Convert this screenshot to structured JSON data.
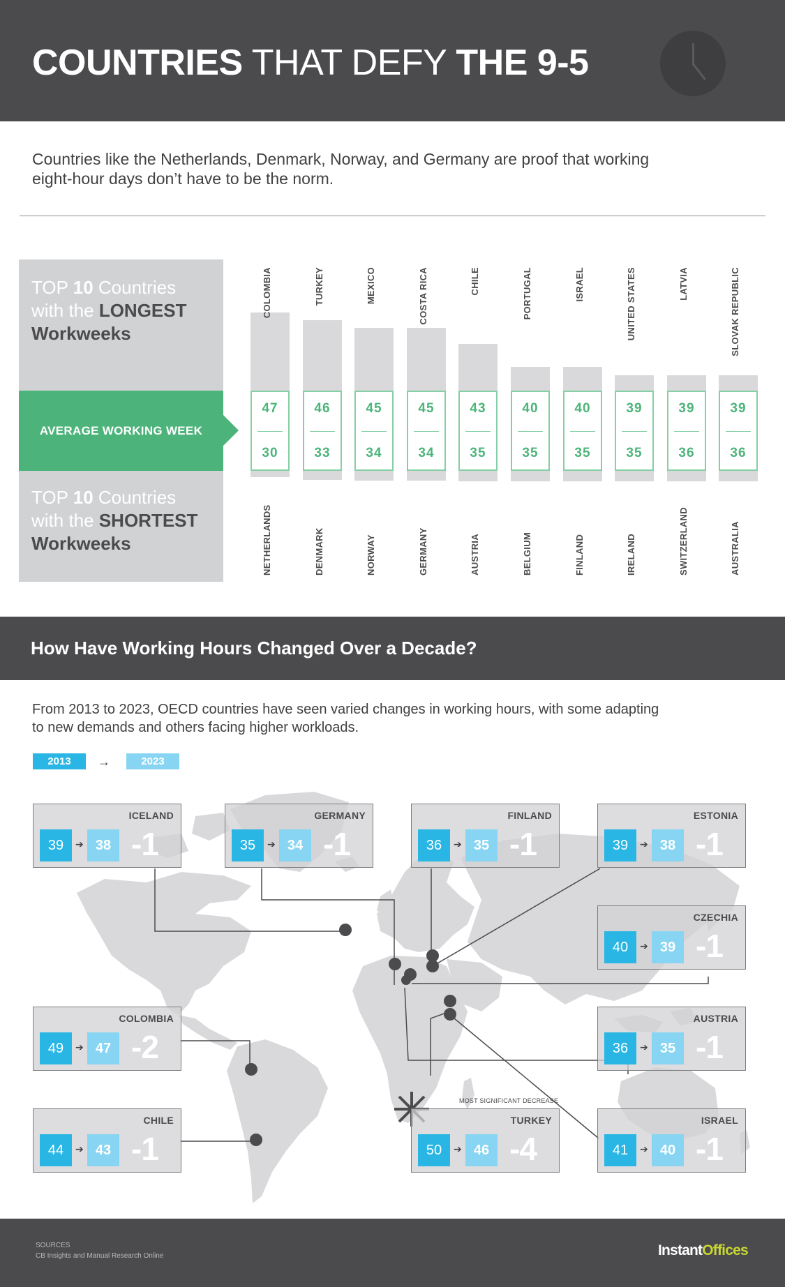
{
  "header": {
    "title_part1": "COUNTRIES",
    "title_part2": " THAT DEFY ",
    "title_part3": "THE 9-5",
    "icon": "clock-icon"
  },
  "intro": "Countries like the Netherlands, Denmark, Norway, and Germany are proof that working eight-hour days don’t have to be the norm.",
  "panels": {
    "longest": {
      "top": "TOP ",
      "num": "10",
      "rest1": " Countries",
      "line2a": "with the ",
      "line2b": "LONGEST",
      "line3": "Workweeks"
    },
    "average_label": "AVERAGE WORKING WEEK",
    "shortest": {
      "top": "TOP ",
      "num": "10",
      "rest1": " Countries",
      "line2a": "with the ",
      "line2b": "SHORTEST",
      "line3": "Workweeks"
    }
  },
  "chart_data": {
    "type": "bar",
    "longest": [
      {
        "country": "COLOMBIA",
        "hours": 47
      },
      {
        "country": "TURKEY",
        "hours": 46
      },
      {
        "country": "MEXICO",
        "hours": 45
      },
      {
        "country": "COSTA RICA",
        "hours": 45
      },
      {
        "country": "CHILE",
        "hours": 43
      },
      {
        "country": "PORTUGAL",
        "hours": 40
      },
      {
        "country": "ISRAEL",
        "hours": 40
      },
      {
        "country": "UNITED STATES",
        "hours": 39
      },
      {
        "country": "LATVIA",
        "hours": 39
      },
      {
        "country": "SLOVAK REPUBLIC",
        "hours": 39
      }
    ],
    "shortest": [
      {
        "country": "NETHERLANDS",
        "hours": 30
      },
      {
        "country": "DENMARK",
        "hours": 33
      },
      {
        "country": "NORWAY",
        "hours": 34
      },
      {
        "country": "GERMANY",
        "hours": 34
      },
      {
        "country": "AUSTRIA",
        "hours": 35
      },
      {
        "country": "BELGIUM",
        "hours": 35
      },
      {
        "country": "FINLAND",
        "hours": 35
      },
      {
        "country": "IRELAND",
        "hours": 35
      },
      {
        "country": "SWITZERLAND",
        "hours": 36
      },
      {
        "country": "AUSTRALIA",
        "hours": 36
      }
    ]
  },
  "section2": {
    "title": "How Have Working Hours Changed Over a Decade?",
    "intro": "From 2013 to 2023, OECD countries have seen varied changes in working hours, with some adapting to new demands and others facing higher workloads.",
    "legend_2013": "2013",
    "legend_arrow": "→",
    "legend_2023": "2023",
    "most_significant_label": "MOST SIGNIFICANT DECREASE"
  },
  "changes": [
    {
      "country": "ICELAND",
      "y2013": "39",
      "y2023": "38",
      "diff": "-1"
    },
    {
      "country": "GERMANY",
      "y2013": "35",
      "y2023": "34",
      "diff": "-1"
    },
    {
      "country": "FINLAND",
      "y2013": "36",
      "y2023": "35",
      "diff": "-1"
    },
    {
      "country": "ESTONIA",
      "y2013": "39",
      "y2023": "38",
      "diff": "-1"
    },
    {
      "country": "CZECHIA",
      "y2013": "40",
      "y2023": "39",
      "diff": "-1"
    },
    {
      "country": "COLOMBIA",
      "y2013": "49",
      "y2023": "47",
      "diff": "-2"
    },
    {
      "country": "AUSTRIA",
      "y2013": "36",
      "y2023": "35",
      "diff": "-1"
    },
    {
      "country": "CHILE",
      "y2013": "44",
      "y2023": "43",
      "diff": "-1"
    },
    {
      "country": "TURKEY",
      "y2013": "50",
      "y2023": "46",
      "diff": "-4"
    },
    {
      "country": "ISRAEL",
      "y2013": "41",
      "y2023": "40",
      "diff": "-1"
    }
  ],
  "footer": {
    "sources_title": "SOURCES",
    "sources_text": "CB Insights and Manual Research Online",
    "logo_part1": "Instant",
    "logo_part2": "Offices"
  },
  "colors": {
    "dark": "#4b4b4e",
    "green": "#4cb47a",
    "blue_2013": "#29b6e4",
    "blue_2023": "#87d5f2",
    "logo_accent": "#c8d731"
  }
}
